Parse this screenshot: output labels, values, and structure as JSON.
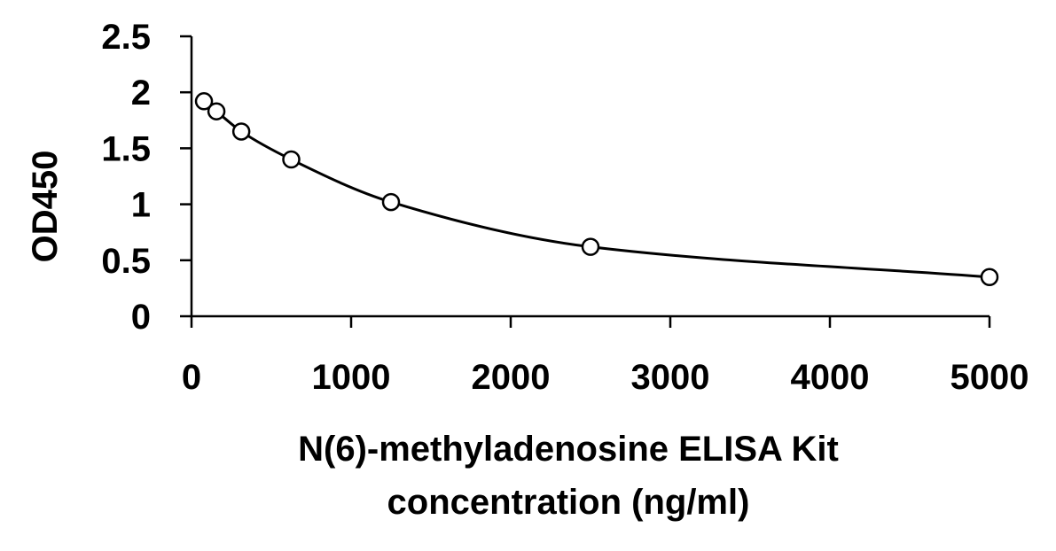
{
  "chart_data": {
    "type": "scatter",
    "title": "",
    "xlabel_lines": [
      "N(6)-methyladenosine ELISA Kit",
      "concentration (ng/ml)"
    ],
    "ylabel": "OD450",
    "xlim": [
      0,
      5000
    ],
    "ylim": [
      0,
      2.5
    ],
    "x_ticks": [
      0,
      1000,
      2000,
      3000,
      4000,
      5000
    ],
    "x_tick_labels": [
      "0",
      "1000",
      "2000",
      "3000",
      "4000",
      "5000"
    ],
    "y_ticks": [
      0,
      0.5,
      1,
      1.5,
      2,
      2.5
    ],
    "y_tick_labels": [
      "0",
      "0.5",
      "1",
      "1.5",
      "2",
      "2.5"
    ],
    "grid": false,
    "legend": "none",
    "series": [
      {
        "x": [
          78,
          156,
          312,
          625,
          1250,
          2500,
          5000
        ],
        "y": [
          1.92,
          1.83,
          1.65,
          1.4,
          1.02,
          0.62,
          0.35
        ],
        "marker": "open-circle",
        "fit": "smooth-curve",
        "color": "#000000"
      }
    ]
  }
}
